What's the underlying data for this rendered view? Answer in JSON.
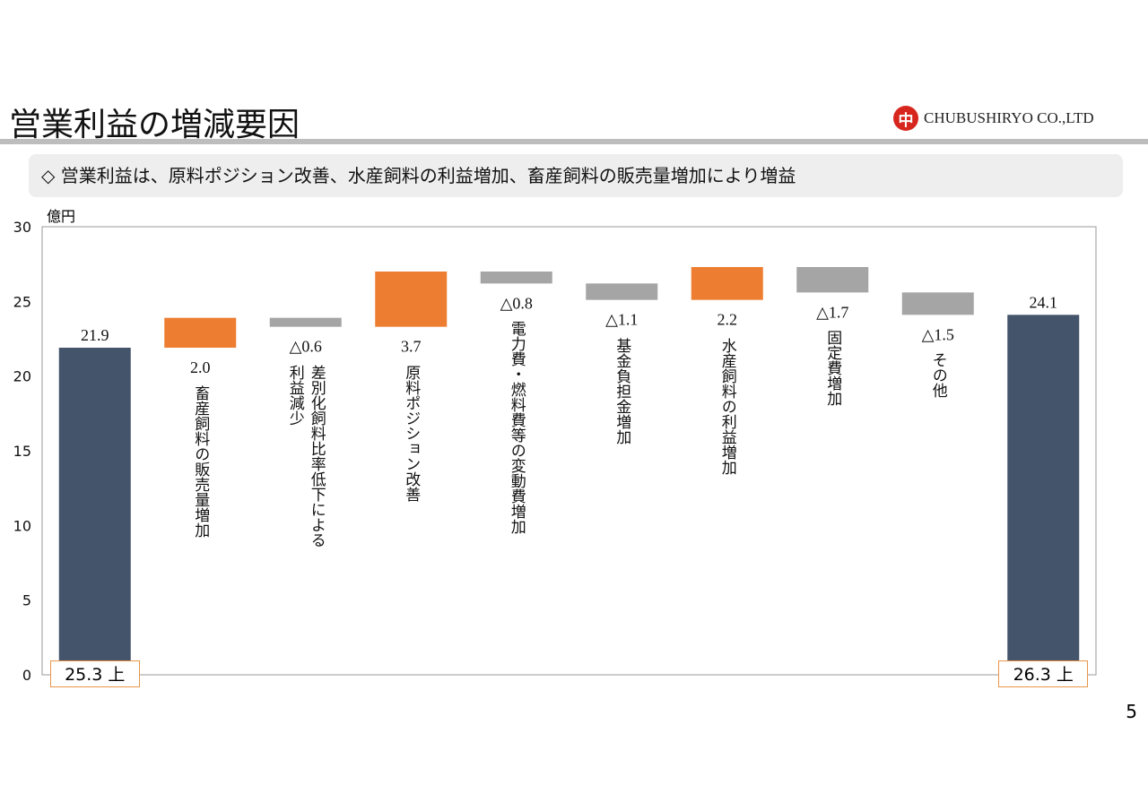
{
  "header": {
    "title": "営業利益の増減要因",
    "company": "CHUBUSHIRYO CO.,LTD",
    "logo_mark": "中"
  },
  "banner": {
    "text": "◇ 営業利益は、原料ポジション改善、水産飼料の利益増加、畜産飼料の販売量増加により増益"
  },
  "page_number": "5",
  "chart_data": {
    "type": "waterfall",
    "ylabel": "億円",
    "ylim": [
      0,
      30
    ],
    "yticks": [
      0,
      5,
      10,
      15,
      20,
      25,
      30
    ],
    "colors": {
      "total": "#44546a",
      "increase": "#ed7d31",
      "decrease": "#a5a5a5"
    },
    "items": [
      {
        "category": "",
        "value": 21.9,
        "kind": "total",
        "label": "21.9",
        "box": "25.3 上"
      },
      {
        "category": "畜産飼料の販売量増加",
        "value": 2.0,
        "kind": "increase",
        "label": "2.0"
      },
      {
        "category": "差別化飼料比率低下による\n利益減少",
        "value": -0.6,
        "kind": "decrease",
        "label": "△0.6"
      },
      {
        "category": "原料ポジション改善",
        "value": 3.7,
        "kind": "increase",
        "label": "3.7"
      },
      {
        "category": "電力費・燃料費等の変動費増加",
        "value": -0.8,
        "kind": "decrease",
        "label": "△0.8"
      },
      {
        "category": "基金負担金増加",
        "value": -1.1,
        "kind": "decrease",
        "label": "△1.1"
      },
      {
        "category": "水産飼料の利益増加",
        "value": 2.2,
        "kind": "increase",
        "label": "2.2"
      },
      {
        "category": "固定費増加",
        "value": -1.7,
        "kind": "decrease",
        "label": "△1.7"
      },
      {
        "category": "その他",
        "value": -1.5,
        "kind": "decrease",
        "label": "△1.5"
      },
      {
        "category": "",
        "value": 24.1,
        "kind": "total",
        "label": "24.1",
        "box": "26.3 上"
      }
    ]
  }
}
